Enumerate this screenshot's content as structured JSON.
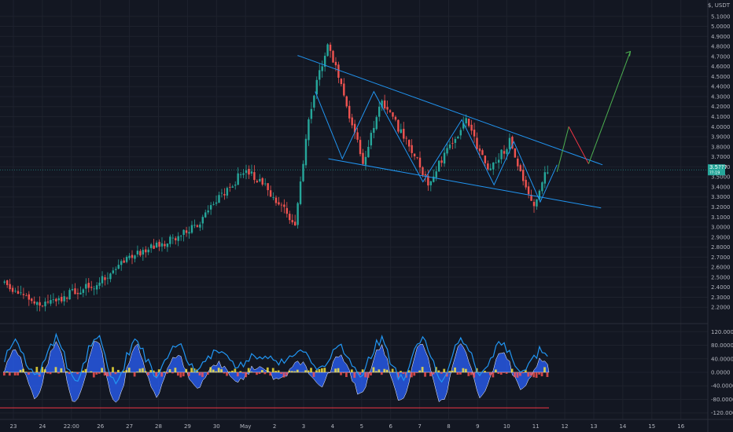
{
  "chart_data": {
    "type": "candlestick",
    "y_axis_header": "$, USDT",
    "price_axis": {
      "ylim": [
        2.1,
        5.2
      ],
      "ticks": [
        "5.1000",
        "5.0000",
        "4.9000",
        "4.8000",
        "4.7000",
        "4.6000",
        "4.5000",
        "4.4000",
        "4.3000",
        "4.2000",
        "4.1000",
        "4.0000",
        "3.9000",
        "3.8000",
        "3.7000",
        "3.6000",
        "3.5000",
        "3.4000",
        "3.3000",
        "3.2000",
        "3.1000",
        "3.0000",
        "2.9000",
        "2.8000",
        "2.7000",
        "2.6000",
        "2.5000",
        "2.4000",
        "2.3000",
        "2.2000"
      ],
      "current_price": 3.57,
      "current_price_label": "3.5???",
      "current_price_sublabel": "??:19"
    },
    "x_axis": {
      "labels": [
        "23",
        "24",
        "22:00",
        "26",
        "27",
        "28",
        "29",
        "30",
        "May",
        "2",
        "3",
        "4",
        "5",
        "6",
        "7",
        "8",
        "9",
        "10",
        "11",
        "12",
        "13",
        "14",
        "15",
        "16"
      ]
    },
    "price_path_segments": [
      {
        "start": 2.45,
        "end": 2.22,
        "bars": 14
      },
      {
        "start": 2.22,
        "end": 2.42,
        "bars": 20
      },
      {
        "start": 2.42,
        "end": 2.7,
        "bars": 14
      },
      {
        "start": 2.7,
        "end": 2.85,
        "bars": 12
      },
      {
        "start": 2.85,
        "end": 3.0,
        "bars": 12
      },
      {
        "start": 3.0,
        "end": 3.35,
        "bars": 10
      },
      {
        "start": 3.35,
        "end": 3.58,
        "bars": 8
      },
      {
        "start": 3.58,
        "end": 3.32,
        "bars": 10
      },
      {
        "start": 3.32,
        "end": 3.0,
        "bars": 8
      },
      {
        "start": 3.0,
        "end": 4.1,
        "bars": 5
      },
      {
        "start": 4.1,
        "end": 4.85,
        "bars": 7
      },
      {
        "start": 4.85,
        "end": 4.3,
        "bars": 6
      },
      {
        "start": 4.3,
        "end": 3.65,
        "bars": 7
      },
      {
        "start": 3.65,
        "end": 4.25,
        "bars": 7
      },
      {
        "start": 4.25,
        "end": 3.95,
        "bars": 7
      },
      {
        "start": 3.95,
        "end": 3.45,
        "bars": 10
      },
      {
        "start": 3.45,
        "end": 3.8,
        "bars": 8
      },
      {
        "start": 3.8,
        "end": 4.05,
        "bars": 6
      },
      {
        "start": 4.05,
        "end": 3.55,
        "bars": 8
      },
      {
        "start": 3.55,
        "end": 3.85,
        "bars": 8
      },
      {
        "start": 3.85,
        "end": 3.2,
        "bars": 9
      },
      {
        "start": 3.2,
        "end": 3.58,
        "bars": 5
      }
    ],
    "wedge_lines": [
      {
        "name": "upper-trendline",
        "points": [
          [
            0.406,
            4.71
          ],
          [
            0.822,
            3.62
          ]
        ]
      },
      {
        "name": "lower-trendline",
        "points": [
          [
            0.448,
            3.68
          ],
          [
            0.82,
            3.19
          ]
        ]
      },
      {
        "name": "zigzag",
        "points": [
          [
            0.43,
            4.35
          ],
          [
            0.467,
            3.68
          ],
          [
            0.51,
            4.35
          ],
          [
            0.577,
            3.45
          ],
          [
            0.63,
            4.07
          ],
          [
            0.674,
            3.42
          ],
          [
            0.701,
            3.85
          ],
          [
            0.737,
            3.25
          ],
          [
            0.76,
            3.62
          ]
        ]
      }
    ],
    "projection": [
      {
        "color": "#4caf50",
        "points": [
          [
            0.76,
            3.55
          ],
          [
            0.776,
            4.0
          ]
        ]
      },
      {
        "color": "#f23645",
        "points": [
          [
            0.776,
            4.0
          ],
          [
            0.803,
            3.63
          ]
        ]
      },
      {
        "color": "#4caf50",
        "points": [
          [
            0.803,
            3.63
          ],
          [
            0.86,
            4.75
          ]
        ]
      }
    ],
    "oscillator": {
      "ylim": [
        -130,
        130
      ],
      "ticks": [
        "120.0000",
        "80.0000",
        "40.0000",
        "0.0000",
        "-40.0000",
        "-80.0000",
        "-120.0000"
      ],
      "line_color": "#2196f3",
      "area_color": "#2962ff"
    }
  },
  "colors": {
    "background": "#131722",
    "grid": "#1e222d",
    "up": "#26a69a",
    "down": "#ef5350",
    "trendline": "#2196f3",
    "price_tag": "#26a69a"
  }
}
